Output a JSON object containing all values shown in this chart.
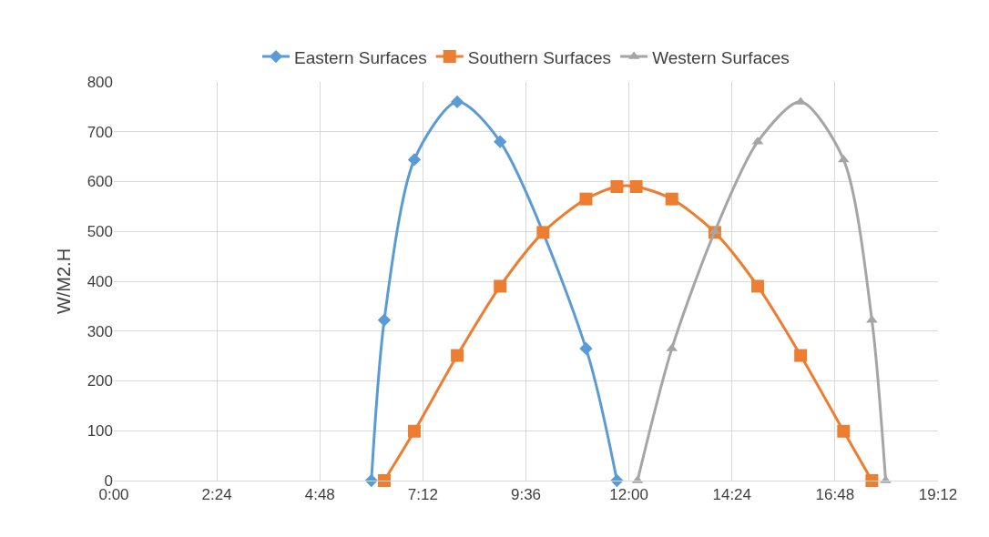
{
  "chart_data": {
    "type": "line",
    "ylabel": "W/M2.H",
    "xlim": [
      0,
      19.2
    ],
    "xticks": [
      {
        "value": 0,
        "label": "0:00"
      },
      {
        "value": 2.4,
        "label": "2:24"
      },
      {
        "value": 4.8,
        "label": "4:48"
      },
      {
        "value": 7.2,
        "label": "7:12"
      },
      {
        "value": 9.6,
        "label": "9:36"
      },
      {
        "value": 12,
        "label": "12:00"
      },
      {
        "value": 14.4,
        "label": "14:24"
      },
      {
        "value": 16.8,
        "label": "16:48"
      },
      {
        "value": 19.2,
        "label": "19:12"
      }
    ],
    "ylim": [
      0,
      800
    ],
    "yticks": [
      0,
      100,
      200,
      300,
      400,
      500,
      600,
      700,
      800
    ],
    "grid": true,
    "legend": "top",
    "line_style": "solid",
    "series": [
      {
        "name": "Eastern Surfaces",
        "color": "#5b9bd5",
        "marker": "diamond",
        "x": [
          6,
          6.3,
          7,
          8,
          9,
          11,
          11.72
        ],
        "values": [
          0,
          322,
          644,
          760,
          680,
          265,
          0
        ]
      },
      {
        "name": "Southern Surfaces",
        "color": "#ed7d31",
        "marker": "square",
        "x": [
          6.3,
          7,
          8,
          9,
          10,
          11,
          11.72,
          12.17,
          13,
          14,
          15,
          16,
          17,
          17.66
        ],
        "values": [
          0,
          99,
          251,
          390,
          498,
          565,
          590,
          590,
          565,
          498,
          390,
          251,
          99,
          0
        ]
      },
      {
        "name": "Western Surfaces",
        "color": "#a5a5a5",
        "marker": "triangle",
        "x": [
          12.2,
          13,
          14,
          15,
          16,
          17,
          17.66,
          17.98
        ],
        "values": [
          0,
          265,
          500,
          680,
          760,
          644,
          322,
          0
        ]
      }
    ]
  }
}
